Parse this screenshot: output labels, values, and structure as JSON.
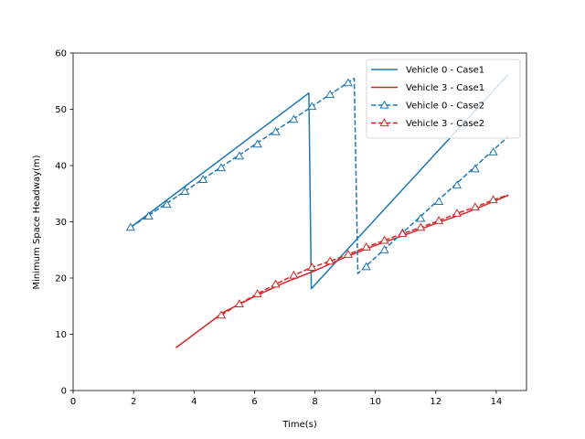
{
  "chart_data": {
    "type": "line",
    "title": "",
    "xlabel": "Time(s)",
    "ylabel": "Minimum Space Headway(m)",
    "xlim": [
      0,
      15
    ],
    "ylim": [
      0,
      60
    ],
    "xticks": [
      0,
      2,
      4,
      6,
      8,
      10,
      12,
      14
    ],
    "yticks": [
      0,
      10,
      20,
      30,
      40,
      50,
      60
    ],
    "grid": false,
    "legend_position": "top-right",
    "series": [
      {
        "name": "Vehicle 0 - Case1",
        "color": "#1f77b4",
        "dash": "solid",
        "marker": "none",
        "x": [
          1.9,
          7.8,
          7.88,
          14.4
        ],
        "y": [
          29.0,
          52.9,
          18.1,
          56.2
        ]
      },
      {
        "name": "Vehicle 3 - Case1",
        "color": "#d62728",
        "dash": "solid",
        "marker": "none",
        "x": [
          3.4,
          5.0,
          6.0,
          7.0,
          8.0,
          9.0,
          10.0,
          11.0,
          12.0,
          13.0,
          14.4
        ],
        "y": [
          7.6,
          14.0,
          16.7,
          19.2,
          21.3,
          23.7,
          25.8,
          27.7,
          29.7,
          31.6,
          34.7
        ]
      },
      {
        "name": "Vehicle 0 - Case2",
        "color": "#1f77b4",
        "dash": "dashed",
        "marker": "triangle",
        "x": [
          1.9,
          9.3,
          9.42,
          14.4
        ],
        "y": [
          29.0,
          55.5,
          20.8,
          45.2
        ],
        "marker_x": [
          1.9,
          2.5,
          3.1,
          3.7,
          4.3,
          4.9,
          5.5,
          6.1,
          6.7,
          7.3,
          7.9,
          8.5,
          9.1,
          9.7,
          10.3,
          10.9,
          11.5,
          12.1,
          12.7,
          13.3,
          13.9
        ],
        "marker_y": [
          29.0,
          31.0,
          33.1,
          35.4,
          37.5,
          39.6,
          41.7,
          43.8,
          46.0,
          48.2,
          50.5,
          52.6,
          54.7,
          22.0,
          25.0,
          28.0,
          30.6,
          33.6,
          36.5,
          39.4,
          42.4
        ]
      },
      {
        "name": "Vehicle 3 - Case2",
        "color": "#d62728",
        "dash": "dashed",
        "marker": "triangle",
        "x": [
          4.9,
          5.5,
          6.1,
          6.7,
          7.3,
          7.9,
          8.5,
          9.1,
          9.7,
          10.3,
          10.9,
          11.5,
          12.1,
          12.7,
          13.3,
          13.9,
          14.4
        ],
        "y": [
          13.4,
          15.4,
          17.2,
          18.9,
          20.5,
          21.9,
          23.0,
          24.2,
          25.5,
          26.7,
          27.9,
          29.0,
          30.2,
          31.5,
          32.6,
          33.9,
          34.8
        ],
        "marker_x": [
          4.9,
          5.5,
          6.1,
          6.7,
          7.3,
          7.9,
          8.5,
          9.1,
          9.7,
          10.3,
          10.9,
          11.5,
          12.1,
          12.7,
          13.3,
          13.9
        ],
        "marker_y": [
          13.4,
          15.4,
          17.2,
          18.9,
          20.5,
          21.9,
          23.0,
          24.2,
          25.5,
          26.7,
          27.9,
          29.0,
          30.2,
          31.5,
          32.6,
          33.9
        ]
      }
    ]
  }
}
